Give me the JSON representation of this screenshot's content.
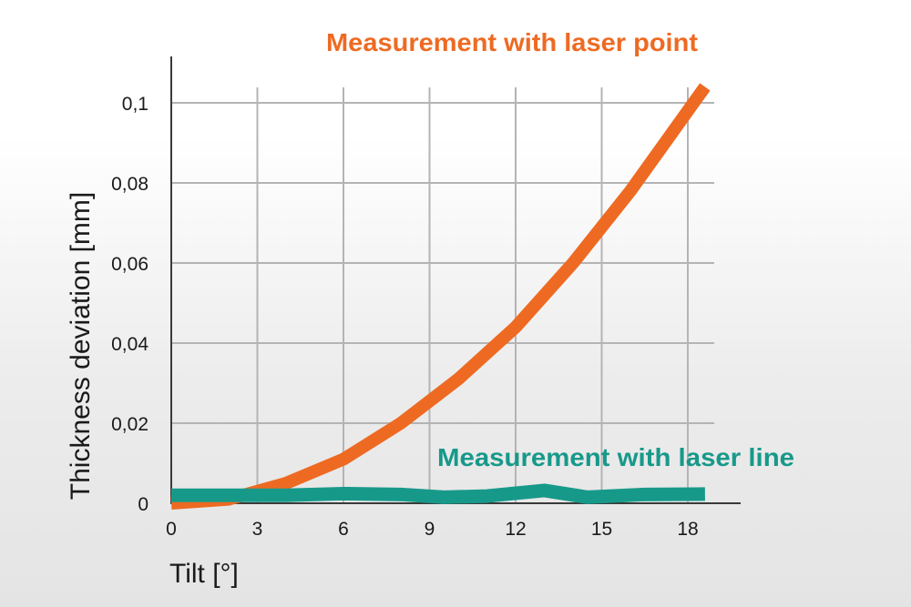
{
  "chart_data": {
    "type": "line",
    "xlabel": "Tilt [°]",
    "ylabel": "Thickness deviation [mm]",
    "xlim": [
      0,
      20
    ],
    "ylim": [
      0,
      0.11
    ],
    "x_ticks": [
      0,
      3,
      6,
      9,
      12,
      15,
      18
    ],
    "x_tick_labels": [
      "0",
      "3",
      "6",
      "9",
      "12",
      "15",
      "18"
    ],
    "y_ticks": [
      0,
      0.02,
      0.04,
      0.06,
      0.08,
      0.1
    ],
    "y_tick_labels": [
      "0",
      "0,02",
      "0,04",
      "0,06",
      "0,08",
      "0,1"
    ],
    "grid": true,
    "series": [
      {
        "name": "Measurement with laser point",
        "color": "#ee6a22",
        "x": [
          0,
          2,
          4,
          6,
          8,
          10,
          12,
          14,
          16,
          18,
          18.6
        ],
        "y": [
          0,
          0.001,
          0.005,
          0.011,
          0.02,
          0.031,
          0.044,
          0.06,
          0.078,
          0.098,
          0.104
        ]
      },
      {
        "name": "Measurement with laser line",
        "color": "#17998a",
        "x": [
          0,
          2,
          4,
          6,
          8,
          9.5,
          11,
          13,
          14.5,
          16.5,
          18.6
        ],
        "y": [
          0.002,
          0.002,
          0.002,
          0.0024,
          0.0022,
          0.0015,
          0.0018,
          0.0032,
          0.0015,
          0.0022,
          0.0023
        ]
      }
    ]
  }
}
